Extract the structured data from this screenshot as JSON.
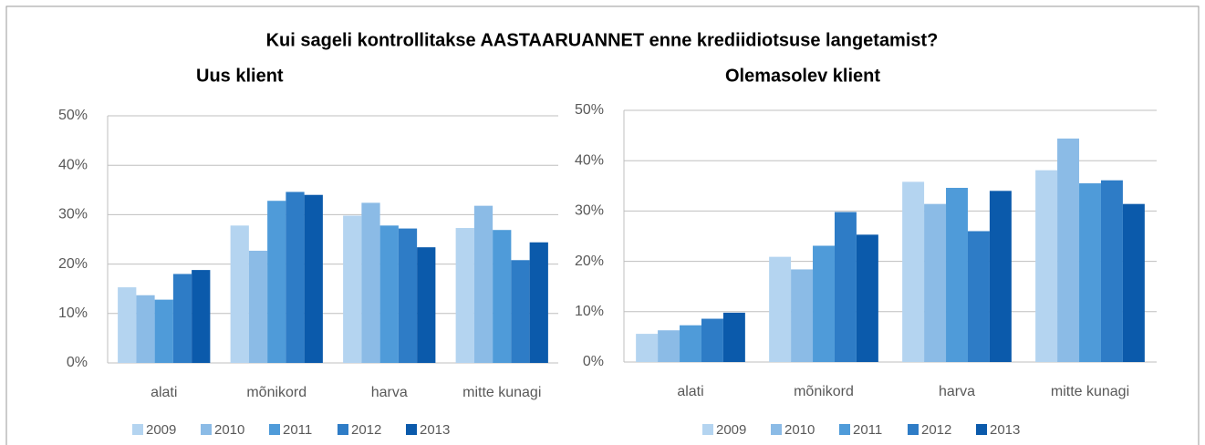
{
  "title": "Kui sageli kontrollitakse AASTAARUANNET enne krediidiotsuse langetamist?",
  "chart_data": [
    {
      "type": "bar",
      "title": "Uus klient",
      "categories": [
        "alati",
        "mõnikord",
        "harva",
        "mitte kunagi"
      ],
      "series": [
        {
          "name": "2009",
          "color": "#b4d4f0",
          "values": [
            15.3,
            27.8,
            29.8,
            27.3
          ]
        },
        {
          "name": "2010",
          "color": "#8bbbe6",
          "values": [
            13.7,
            22.7,
            32.4,
            31.8
          ]
        },
        {
          "name": "2011",
          "color": "#4f9bd9",
          "values": [
            12.8,
            32.8,
            27.8,
            26.9
          ]
        },
        {
          "name": "2012",
          "color": "#2e7cc6",
          "values": [
            18.0,
            34.6,
            27.2,
            20.8
          ]
        },
        {
          "name": "2013",
          "color": "#0b5aab",
          "values": [
            18.8,
            34.0,
            23.4,
            24.4
          ]
        }
      ],
      "ylim": [
        0,
        50
      ],
      "yticks": [
        {
          "value": 0,
          "label": "0%"
        },
        {
          "value": 10,
          "label": "10%"
        },
        {
          "value": 20,
          "label": "20%"
        },
        {
          "value": 30,
          "label": "30%"
        },
        {
          "value": 40,
          "label": "40%"
        },
        {
          "value": 50,
          "label": "50%"
        }
      ],
      "grid": true,
      "legend": "bottom"
    },
    {
      "type": "bar",
      "title": "Olemasolev klient",
      "categories": [
        "alati",
        "mõnikord",
        "harva",
        "mitte kunagi"
      ],
      "series": [
        {
          "name": "2009",
          "color": "#b4d4f0",
          "values": [
            5.6,
            20.9,
            35.8,
            38.1
          ]
        },
        {
          "name": "2010",
          "color": "#8bbbe6",
          "values": [
            6.3,
            18.4,
            31.4,
            44.4
          ]
        },
        {
          "name": "2011",
          "color": "#4f9bd9",
          "values": [
            7.3,
            23.1,
            34.6,
            35.5
          ]
        },
        {
          "name": "2012",
          "color": "#2e7cc6",
          "values": [
            8.6,
            29.8,
            26.0,
            36.1
          ]
        },
        {
          "name": "2013",
          "color": "#0b5aab",
          "values": [
            9.8,
            25.3,
            34.0,
            31.4
          ]
        }
      ],
      "ylim": [
        0,
        50
      ],
      "yticks": [
        {
          "value": 0,
          "label": "0%"
        },
        {
          "value": 10,
          "label": "10%"
        },
        {
          "value": 20,
          "label": "20%"
        },
        {
          "value": 30,
          "label": "30%"
        },
        {
          "value": 40,
          "label": "40%"
        },
        {
          "value": 50,
          "label": "50%"
        }
      ],
      "grid": true,
      "legend": "bottom"
    }
  ]
}
